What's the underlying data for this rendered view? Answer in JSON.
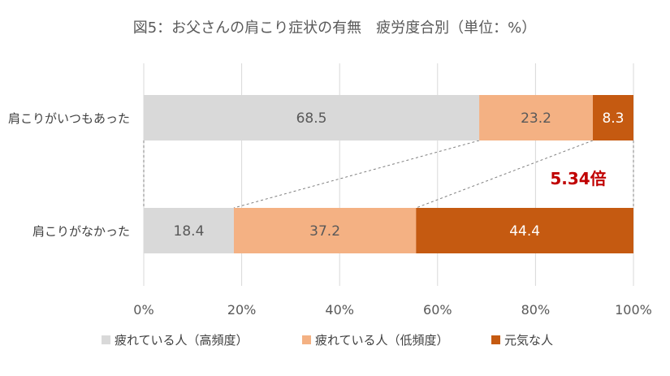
{
  "chart_data": {
    "type": "bar",
    "orientation": "horizontal",
    "stacked": true,
    "percent": true,
    "title": "図5：お父さんの肩こり症状の有無　疲労度合別（単位：%）",
    "categories": [
      "肩こりがいつもあった",
      "肩こりがなかった"
    ],
    "series": [
      {
        "name": "疲れている人（高頻度）",
        "values": [
          68.5,
          18.4
        ],
        "color": "#d9d9d9",
        "label_color": "#595959"
      },
      {
        "name": "疲れている人（低頻度）",
        "values": [
          23.2,
          37.2
        ],
        "color": "#f4b183",
        "label_color": "#595959"
      },
      {
        "name": "元気な人",
        "values": [
          8.3,
          44.4
        ],
        "color": "#c55a11",
        "label_color": "#ffffff"
      }
    ],
    "xlim": [
      0,
      100
    ],
    "xticks": [
      "0%",
      "20%",
      "40%",
      "60%",
      "80%",
      "100%"
    ],
    "grid": true,
    "legend_position": "bottom",
    "annotation": {
      "text": "5.34倍",
      "color": "#c00000"
    }
  }
}
